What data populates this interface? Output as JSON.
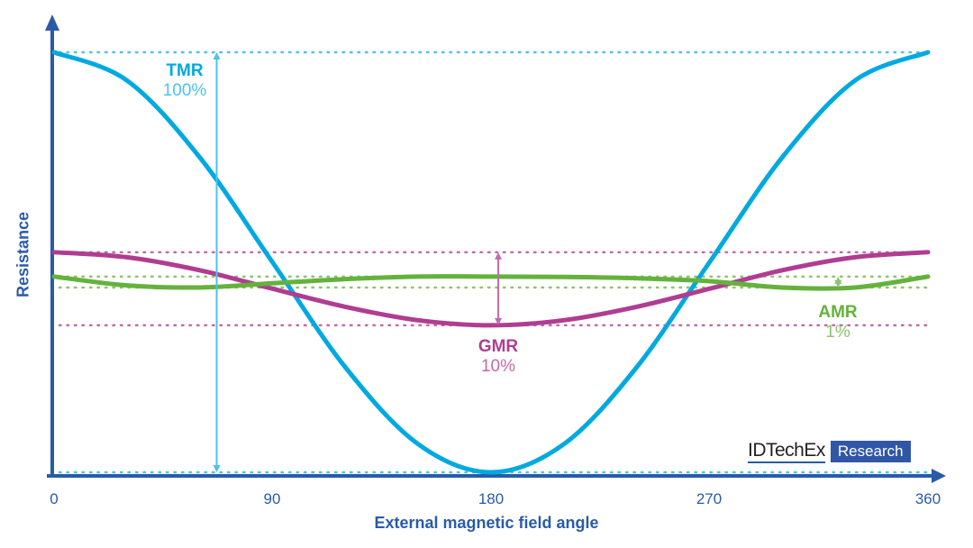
{
  "chart_data": {
    "type": "line",
    "xlabel": "External magnetic field angle",
    "ylabel": "Resistance",
    "xlim": [
      0,
      360
    ],
    "ylim": [
      0,
      1
    ],
    "xticks": [
      "0",
      "90",
      "180",
      "270",
      "360"
    ],
    "grid": false,
    "x": [
      0,
      30,
      60,
      90,
      120,
      150,
      180,
      210,
      240,
      270,
      300,
      330,
      360
    ],
    "series": [
      {
        "name": "TMR",
        "label": "100%",
        "color": "#00a9e0",
        "values": [
          1,
          0.933,
          0.75,
          0.5,
          0.25,
          0.067,
          0,
          0.067,
          0.25,
          0.5,
          0.75,
          0.933,
          1
        ]
      },
      {
        "name": "GMR",
        "label": "10%",
        "color": "#b03d91",
        "values": [
          0.524,
          0.512,
          0.481,
          0.437,
          0.394,
          0.362,
          0.35,
          0.362,
          0.394,
          0.437,
          0.481,
          0.512,
          0.524
        ]
      },
      {
        "name": "AMR",
        "label": "1%",
        "color": "#64b23c",
        "values": [
          0.466,
          0.445,
          0.44,
          0.45,
          0.46,
          0.466,
          0.466,
          0.465,
          0.462,
          0.455,
          0.44,
          0.44,
          0.466
        ]
      }
    ]
  },
  "logo": {
    "brand": "IDTechEx",
    "tag": "Research"
  }
}
